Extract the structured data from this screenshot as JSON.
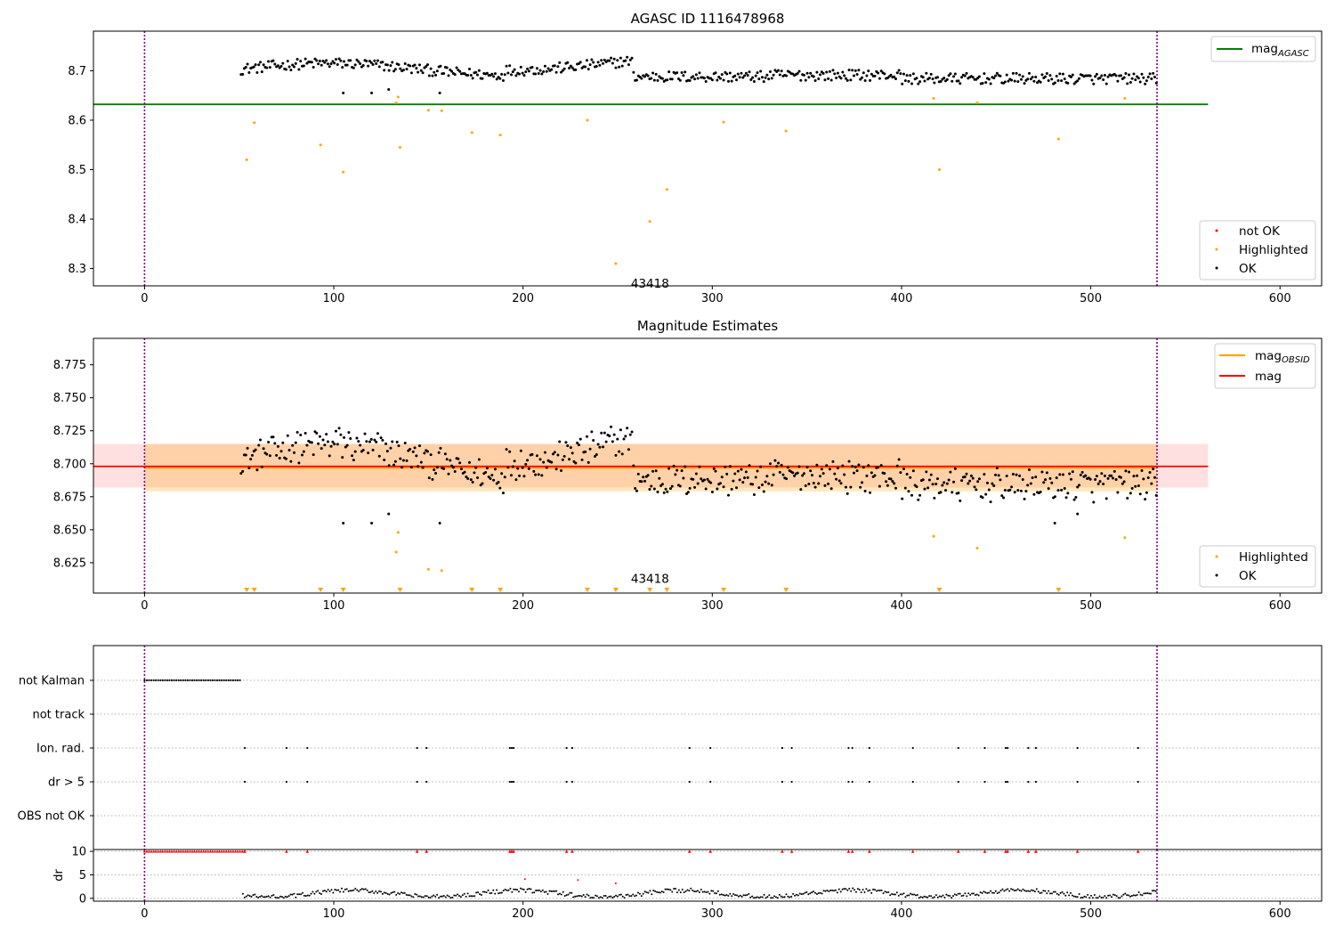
{
  "chart_data": [
    {
      "type": "scatter",
      "title": "AGASC ID 1116478968",
      "xlim": [
        -27,
        622
      ],
      "ylim": [
        8.265,
        8.78
      ],
      "xticks": [
        0,
        100,
        200,
        300,
        400,
        500,
        600
      ],
      "yticks": [
        8.3,
        8.4,
        8.5,
        8.6,
        8.7
      ],
      "vlines": [
        0,
        535
      ],
      "hline": {
        "name": "mag",
        "subscript": "AGASC",
        "value": 8.632,
        "x": [
          -27,
          562
        ],
        "color": "#008000"
      },
      "annotation": {
        "text": "43418",
        "x": 257,
        "y": 8.29
      },
      "legend_top": {
        "placement": "upper-right",
        "entries": [
          {
            "label": "mag",
            "subscript": "AGASC",
            "color": "#008000"
          }
        ]
      },
      "legend_bottom": {
        "placement": "lower-right",
        "entries": [
          {
            "label": "not OK",
            "color": "#ff0000"
          },
          {
            "label": "Highlighted",
            "color": "#ffa500"
          },
          {
            "label": "OK",
            "color": "#000000"
          }
        ]
      },
      "highlighted": [
        [
          54,
          8.52
        ],
        [
          58,
          8.595
        ],
        [
          93,
          8.55
        ],
        [
          105,
          8.495
        ],
        [
          133,
          8.635
        ],
        [
          134,
          8.647
        ],
        [
          135,
          8.545
        ],
        [
          150,
          8.62
        ],
        [
          157,
          8.619
        ],
        [
          173,
          8.575
        ],
        [
          188,
          8.57
        ],
        [
          234,
          8.6
        ],
        [
          249,
          8.31
        ],
        [
          267,
          8.395
        ],
        [
          276,
          8.46
        ],
        [
          306,
          8.596
        ],
        [
          339,
          8.578
        ],
        [
          417,
          8.644
        ],
        [
          420,
          8.5
        ],
        [
          440,
          8.635
        ],
        [
          483,
          8.562
        ],
        [
          518,
          8.644
        ]
      ]
    },
    {
      "type": "scatter",
      "title": "Magnitude Estimates",
      "xlim": [
        -27,
        622
      ],
      "ylim": [
        8.602,
        8.795
      ],
      "xticks": [
        0,
        100,
        200,
        300,
        400,
        500,
        600
      ],
      "yticks": [
        8.625,
        8.65,
        8.675,
        8.7,
        8.725,
        8.75,
        8.775
      ],
      "vlines": [
        0,
        535
      ],
      "mag": {
        "value": 8.698,
        "band": [
          8.682,
          8.715
        ],
        "x": [
          -27,
          562
        ],
        "color": "#ff0000"
      },
      "mag_obsid": {
        "value": 8.697,
        "band": [
          8.679,
          8.715
        ],
        "x": [
          0,
          535
        ],
        "color": "#ffa500"
      },
      "annotation": {
        "text": "43418",
        "x": 257,
        "y": 8.613
      },
      "legend_top": {
        "placement": "upper-right",
        "entries": [
          {
            "label": "mag",
            "subscript": "OBSID",
            "color": "#ffa500"
          },
          {
            "label": "mag",
            "subscript": "",
            "color": "#ff0000"
          }
        ]
      },
      "legend_bottom": {
        "placement": "lower-right",
        "entries": [
          {
            "label": "Highlighted",
            "color": "#ffa500"
          },
          {
            "label": "OK",
            "color": "#000000"
          }
        ]
      },
      "highlighted": [
        [
          134,
          8.648
        ],
        [
          133,
          8.633
        ],
        [
          150,
          8.62
        ],
        [
          157,
          8.619
        ],
        [
          417,
          8.645
        ],
        [
          440,
          8.636
        ],
        [
          518,
          8.644
        ]
      ],
      "clipped_markers_x": [
        54,
        58,
        93,
        105,
        135,
        173,
        188,
        234,
        249,
        267,
        276,
        306,
        339,
        420,
        483
      ]
    },
    {
      "type": "scatter",
      "title": "",
      "xlim": [
        -27,
        622
      ],
      "vlines": [
        0,
        535
      ],
      "flag_rows": [
        "not Kalman",
        "not track",
        "Ion. rad.",
        "dr > 5",
        "OBS not OK"
      ],
      "not_kalman_range": [
        0,
        51
      ],
      "flag_x": [
        53,
        75,
        86,
        144,
        149,
        193,
        194,
        195,
        223,
        226,
        288,
        299,
        337,
        342,
        372,
        374,
        383,
        406,
        430,
        444,
        455,
        456,
        467,
        471,
        493,
        525
      ],
      "dr_panel": {
        "ylabel": "dr",
        "yticks": [
          0,
          5,
          10
        ],
        "ylim": [
          -0.6,
          10.4
        ],
        "clip_value": 10,
        "xticks": [
          0,
          100,
          200,
          300,
          400,
          500,
          600
        ]
      },
      "dr_outliers": [
        [
          201,
          4.1
        ],
        [
          229,
          3.9
        ],
        [
          249,
          3.2
        ]
      ]
    }
  ]
}
